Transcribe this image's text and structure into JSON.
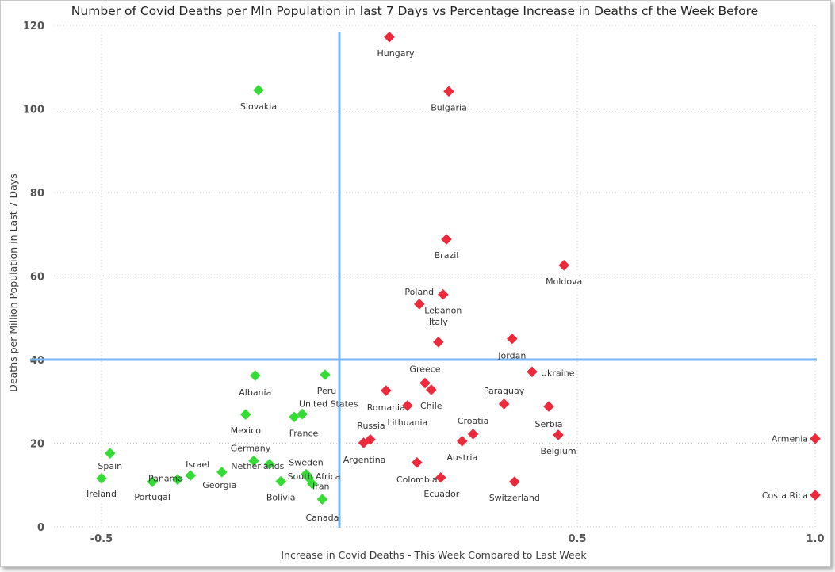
{
  "chart_data": {
    "type": "scatter",
    "title": "Number of Covid Deaths per Mln Population in last 7 Days vs Percentage Increase in Deaths cf the Week Before",
    "xlabel": "Increase in Covid Deaths - This Week Compared to Last Week",
    "ylabel": "Deaths per Million Population in Last 7 Days",
    "xlim": [
      -0.6,
      1.0
    ],
    "ylim": [
      0,
      120
    ],
    "x_ticks": [
      -0.5,
      0.5,
      1.0
    ],
    "x_tick_labels": [
      "-0.5",
      "0.5",
      "1.0"
    ],
    "y_ticks": [
      0,
      20,
      40,
      60,
      80,
      100,
      120
    ],
    "y_tick_labels": [
      "0",
      "20",
      "40",
      "60",
      "80",
      "100",
      "120"
    ],
    "grid": true,
    "reference_lines": {
      "x": 0.0,
      "y": 40
    },
    "colors": {
      "decrease": "#35dc35",
      "increase": "#ec2a3c",
      "reference": "#77b7f5"
    },
    "points": [
      {
        "label": "Hungary",
        "x": 0.105,
        "y": 117.2
      },
      {
        "label": "Slovakia",
        "x": -0.17,
        "y": 104.5
      },
      {
        "label": "Bulgaria",
        "x": 0.23,
        "y": 104.2
      },
      {
        "label": "Brazil",
        "x": 0.225,
        "y": 68.8
      },
      {
        "label": "Moldova",
        "x": 0.472,
        "y": 62.6
      },
      {
        "label": "Poland",
        "x": 0.168,
        "y": 53.3
      },
      {
        "label": "Lebanon",
        "x": 0.218,
        "y": 55.6
      },
      {
        "label": "Italy",
        "x": 0.208,
        "y": 44.2
      },
      {
        "label": "Jordan",
        "x": 0.363,
        "y": 45.0
      },
      {
        "label": "Ukraine",
        "x": 0.405,
        "y": 37.1
      },
      {
        "label": "Albania",
        "x": -0.177,
        "y": 36.2
      },
      {
        "label": "Peru",
        "x": -0.03,
        "y": 36.4
      },
      {
        "label": "Greece",
        "x": 0.18,
        "y": 34.4
      },
      {
        "label": "Chile",
        "x": 0.193,
        "y": 32.8
      },
      {
        "label": "Romania",
        "x": 0.098,
        "y": 32.6
      },
      {
        "label": "Paraguay",
        "x": 0.346,
        "y": 29.4
      },
      {
        "label": "Serbia",
        "x": 0.44,
        "y": 28.8
      },
      {
        "label": "Lithuania",
        "x": 0.143,
        "y": 29.0
      },
      {
        "label": "Mexico",
        "x": -0.197,
        "y": 26.9
      },
      {
        "label": "United States",
        "x": -0.078,
        "y": 27.0
      },
      {
        "label": "France",
        "x": -0.095,
        "y": 26.3
      },
      {
        "label": "Croatia",
        "x": 0.281,
        "y": 22.2
      },
      {
        "label": "Belgium",
        "x": 0.46,
        "y": 22.0
      },
      {
        "label": "Russia",
        "x": 0.065,
        "y": 20.9
      },
      {
        "label": "Argentina",
        "x": 0.051,
        "y": 20.1
      },
      {
        "label": "Austria",
        "x": 0.258,
        "y": 20.5
      },
      {
        "label": "Armenia",
        "x": 1.0,
        "y": 21.1
      },
      {
        "label": "Spain",
        "x": -0.482,
        "y": 17.6
      },
      {
        "label": "Germany",
        "x": -0.18,
        "y": 15.8
      },
      {
        "label": "Netherlands",
        "x": -0.147,
        "y": 15.0
      },
      {
        "label": "Colombia",
        "x": 0.163,
        "y": 15.4
      },
      {
        "label": "Sweden",
        "x": -0.07,
        "y": 12.6
      },
      {
        "label": "South Africa",
        "x": -0.065,
        "y": 11.8
      },
      {
        "label": "Israel",
        "x": -0.313,
        "y": 12.3
      },
      {
        "label": "Panama",
        "x": -0.34,
        "y": 11.3
      },
      {
        "label": "Georgia",
        "x": -0.247,
        "y": 13.1
      },
      {
        "label": "Ireland",
        "x": -0.5,
        "y": 11.6
      },
      {
        "label": "Portugal",
        "x": -0.393,
        "y": 10.8
      },
      {
        "label": "Bolivia",
        "x": -0.123,
        "y": 10.9
      },
      {
        "label": "Iran",
        "x": -0.057,
        "y": 10.3
      },
      {
        "label": "Ecuador",
        "x": 0.213,
        "y": 11.8
      },
      {
        "label": "Switzerland",
        "x": 0.368,
        "y": 10.8
      },
      {
        "label": "Canada",
        "x": -0.036,
        "y": 6.6
      },
      {
        "label": "Costa Rica",
        "x": 1.0,
        "y": 7.6
      }
    ]
  }
}
